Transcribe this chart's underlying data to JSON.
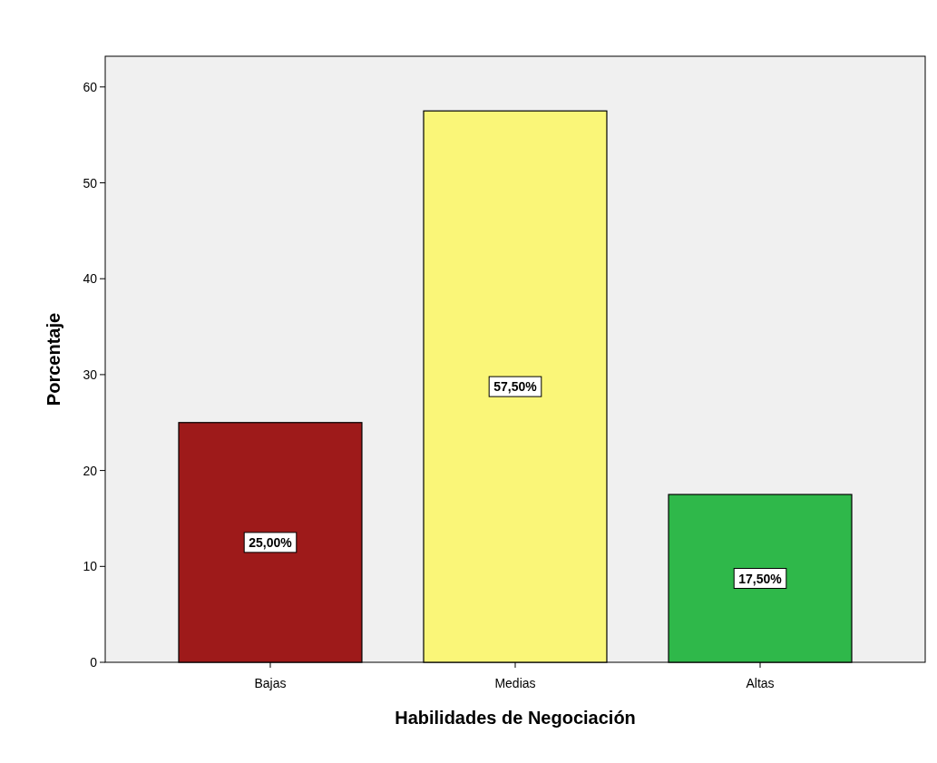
{
  "chart_data": {
    "type": "bar",
    "xlabel": "Habilidades de Negociación",
    "ylabel": "Porcentaje",
    "categories": [
      "Bajas",
      "Medias",
      "Altas"
    ],
    "values": [
      25,
      57.5,
      17.5
    ],
    "colors": [
      "#9e1a1a",
      "#faf678",
      "#2fb84a"
    ],
    "value_labels": [
      "25,00%",
      "57,50%",
      "17,50%"
    ],
    "ylim": [
      0,
      63.2
    ],
    "yticks": [
      0,
      10,
      20,
      30,
      40,
      50,
      60
    ],
    "grid": false
  }
}
